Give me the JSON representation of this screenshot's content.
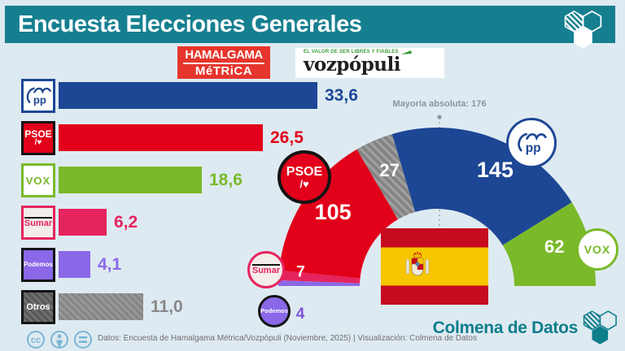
{
  "header": {
    "title": "Encuesta Elecciones Generales"
  },
  "logos": {
    "pollster": {
      "line1": "HAMALGAMA",
      "line2": "MéTRiCA"
    },
    "media": {
      "tagline": "EL VALOR DE SER LIBRES Y FIABLES",
      "name": "vozpópuli"
    }
  },
  "chart_data": [
    {
      "type": "bar",
      "orientation": "horizontal",
      "unit": "%",
      "xlim": [
        0,
        33.6
      ],
      "categories": [
        "PP",
        "PSOE",
        "VOX",
        "Sumar",
        "Podemos",
        "Otros"
      ],
      "values": [
        33.6,
        26.5,
        18.6,
        6.2,
        4.1,
        11.0
      ],
      "value_labels": [
        "33,6",
        "26,5",
        "18,6",
        "6,2",
        "4,1",
        "11,0"
      ],
      "colors": [
        "#1d4795",
        "#e2001a",
        "#7ab929",
        "#e5245e",
        "#8a68e8",
        "#8f8f8f"
      ],
      "psoe_logo_line2": "/♥",
      "grid": false,
      "legend_position": "none"
    },
    {
      "type": "pie",
      "shape": "semicircle-donut",
      "total_seats": 350,
      "majority": {
        "label": "Mayoría absoluta: 176",
        "seats": 176
      },
      "series": [
        {
          "name": "Podemos",
          "seats": 4,
          "color": "#8a68e8",
          "textured": false
        },
        {
          "name": "Sumar",
          "seats": 7,
          "color": "#e5245e",
          "textured": false
        },
        {
          "name": "PSOE",
          "seats": 105,
          "color": "#e2001a",
          "textured": false
        },
        {
          "name": "Otros",
          "seats": 27,
          "color": "#9e9e9e",
          "textured": true
        },
        {
          "name": "PP",
          "seats": 145,
          "color": "#1d4795",
          "textured": false
        },
        {
          "name": "VOX",
          "seats": 62,
          "color": "#7ab929",
          "textured": false
        }
      ],
      "legend_position": "on-segments"
    }
  ],
  "footer": {
    "license_icons": [
      "cc",
      "attribution",
      "equals"
    ],
    "credit": "Datos: Encuesta de Hamalgama Métrica/Vozpópuli (Noviembre, 2025) | Visualización: Colmena de Datos",
    "brand": "Colmena de Datos"
  }
}
